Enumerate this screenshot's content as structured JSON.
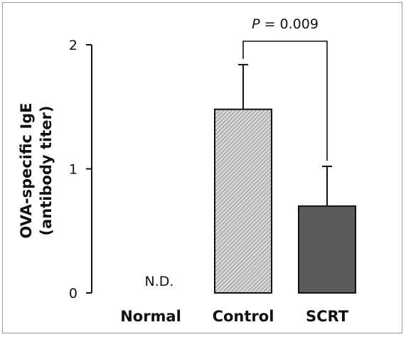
{
  "chart_data": {
    "type": "bar",
    "categories": [
      "Normal",
      "Control",
      "SCRT"
    ],
    "values": [
      0,
      1.48,
      0.7
    ],
    "error_upper": [
      null,
      1.84,
      1.02
    ],
    "bar_labels": [
      "N.D.",
      "",
      ""
    ],
    "bar_colors": [
      "#ffffff",
      "#cfcfcf",
      "#5a5a5a"
    ],
    "ylabel_line1": "OVA-specific IgE",
    "ylabel_line2": "(antibody titer)",
    "yticks": [
      "0",
      "1",
      "2"
    ],
    "ylim": [
      0,
      2
    ],
    "grid": false,
    "significance": {
      "p_italic": "P",
      "p_rest": " = 0.009",
      "between": [
        "Control",
        "SCRT"
      ]
    }
  }
}
